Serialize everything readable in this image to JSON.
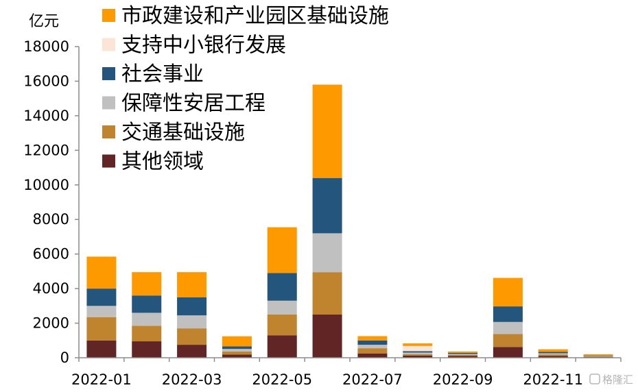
{
  "chart_data": {
    "type": "bar",
    "stacked": true,
    "y_unit": "亿元",
    "ylim": [
      0,
      18000
    ],
    "yticks": [
      0,
      2000,
      4000,
      6000,
      8000,
      10000,
      12000,
      14000,
      16000,
      18000
    ],
    "categories": [
      "2022-01",
      "2022-02",
      "2022-03",
      "2022-04",
      "2022-05",
      "2022-06",
      "2022-07",
      "2022-08",
      "2022-09",
      "2022-10",
      "2022-11",
      "2022-12"
    ],
    "x_tick_labels": [
      "2022-01",
      "",
      "2022-03",
      "",
      "2022-05",
      "",
      "2022-07",
      "",
      "2022-09",
      "",
      "2022-11",
      ""
    ],
    "grid": false,
    "legend_position": "top-left",
    "series": [
      {
        "name": "其他领域",
        "color": "#622526",
        "values": [
          1000,
          950,
          750,
          180,
          1300,
          2500,
          250,
          120,
          100,
          620,
          100,
          40
        ]
      },
      {
        "name": "交通基础设施",
        "color": "#C0842F",
        "values": [
          1350,
          900,
          950,
          180,
          1200,
          2450,
          300,
          80,
          60,
          750,
          80,
          30
        ]
      },
      {
        "name": "保障性安居工程",
        "color": "#C0C0C0",
        "values": [
          650,
          750,
          750,
          150,
          800,
          2250,
          200,
          100,
          60,
          700,
          80,
          30
        ]
      },
      {
        "name": "社会事业",
        "color": "#24557D",
        "values": [
          1000,
          1000,
          1050,
          150,
          1600,
          3200,
          250,
          80,
          60,
          900,
          80,
          30
        ]
      },
      {
        "name": "支持中小银行发展",
        "color": "#FCE4D6",
        "values": [
          0,
          0,
          0,
          0,
          0,
          0,
          0,
          300,
          0,
          0,
          0,
          0
        ]
      },
      {
        "name": "市政建设和产业园区基础设施",
        "color": "#FF9900",
        "values": [
          1850,
          1350,
          1450,
          580,
          2650,
          5400,
          250,
          150,
          80,
          1650,
          150,
          70
        ]
      }
    ]
  },
  "watermark": "格隆汇"
}
